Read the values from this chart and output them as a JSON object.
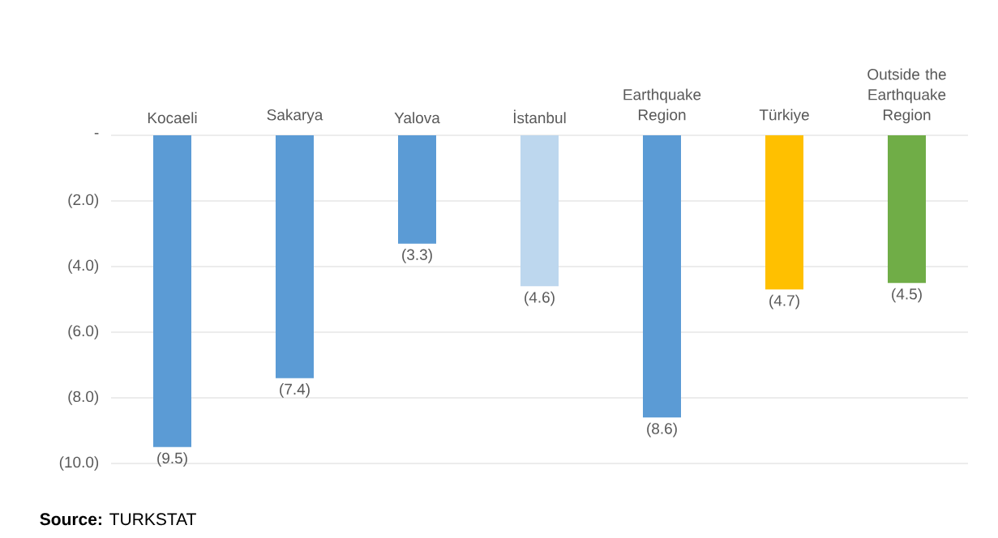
{
  "chart_data": {
    "type": "bar",
    "categories": [
      "Kocaeli",
      "Sakarya",
      "Yalova",
      "İstanbul",
      "Earthquake Region",
      "Türkiye",
      "Outside the Earthquake Region"
    ],
    "values": [
      -9.5,
      -7.4,
      -3.3,
      -4.6,
      -8.6,
      -4.7,
      -4.5
    ],
    "colors": [
      "#5b9bd5",
      "#5b9bd5",
      "#5b9bd5",
      "#bdd7ee",
      "#5b9bd5",
      "#ffc000",
      "#70ad47"
    ],
    "value_labels": [
      "(9.5)",
      "(7.4)",
      "(3.3)",
      "(4.6)",
      "(8.6)",
      "(4.7)",
      "(4.5)"
    ],
    "ylim": [
      -10,
      0
    ],
    "yticks": [
      {
        "value": 0,
        "label": "-"
      },
      {
        "value": -2,
        "label": "(2.0)"
      },
      {
        "value": -4,
        "label": "(4.0)"
      },
      {
        "value": -6,
        "label": "(6.0)"
      },
      {
        "value": -8,
        "label": "(8.0)"
      },
      {
        "value": -10,
        "label": "(10.0)"
      }
    ],
    "grid": "y",
    "annotations": [
      "**Source:** TURKSTAT"
    ]
  }
}
